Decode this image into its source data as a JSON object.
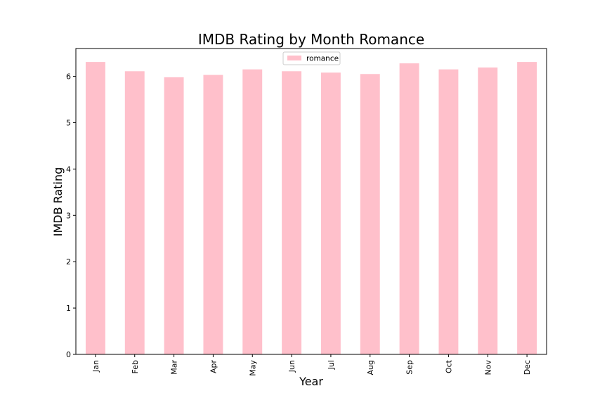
{
  "chart_data": {
    "type": "bar",
    "title": "IMDB Rating by Month Romance",
    "xlabel": "Year",
    "ylabel": "IMDB Rating",
    "categories": [
      "Jan",
      "Feb",
      "Mar",
      "Apr",
      "May",
      "Jun",
      "Jul",
      "Aug",
      "Sep",
      "Oct",
      "Nov",
      "Dec"
    ],
    "series": [
      {
        "name": "romance",
        "color": "#ffc0cb",
        "values": [
          6.31,
          6.11,
          5.98,
          6.03,
          6.15,
          6.11,
          6.08,
          6.05,
          6.28,
          6.15,
          6.19,
          6.31
        ]
      }
    ],
    "ylim": [
      0,
      6.6
    ],
    "yticks": [
      "0",
      "1",
      "2",
      "3",
      "4",
      "5",
      "6"
    ],
    "grid": false,
    "legend_position": "top-center"
  }
}
